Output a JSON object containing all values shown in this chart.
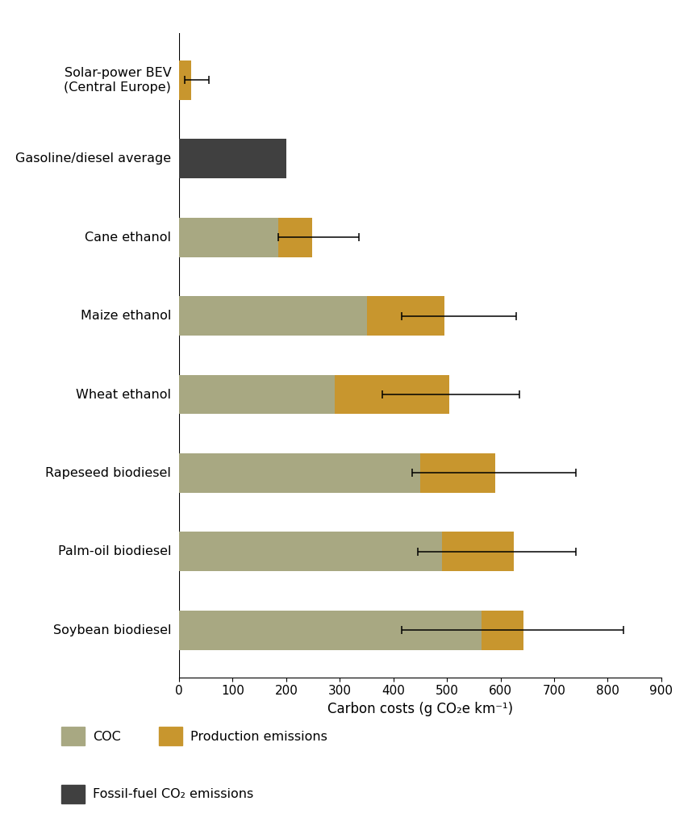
{
  "categories": [
    "Solar-power BEV\n(Central Europe)",
    "Gasoline/diesel average",
    "Cane ethanol",
    "Maize ethanol",
    "Wheat ethanol",
    "Rapeseed biodiesel",
    "Palm-oil biodiesel",
    "Soybean biodiesel"
  ],
  "coc_values": [
    0,
    0,
    185,
    350,
    290,
    450,
    490,
    565
  ],
  "production_values": [
    22,
    0,
    63,
    145,
    215,
    140,
    135,
    78
  ],
  "fossil_values": [
    0,
    200,
    0,
    0,
    0,
    0,
    0,
    0
  ],
  "error_centers": [
    22,
    null,
    245,
    450,
    450,
    460,
    490,
    460
  ],
  "error_low": [
    10,
    null,
    185,
    415,
    380,
    435,
    445,
    415
  ],
  "error_high": [
    55,
    null,
    335,
    630,
    635,
    740,
    740,
    830
  ],
  "coc_color": "#A8A882",
  "production_color": "#C8962E",
  "fossil_color": "#404040",
  "bar_height": 0.5,
  "xlim": [
    0,
    900
  ],
  "xticks": [
    0,
    100,
    200,
    300,
    400,
    500,
    600,
    700,
    800,
    900
  ],
  "xlabel": "Carbon costs (g CO₂e km⁻¹)",
  "background_color": "#FFFFFF",
  "legend_labels": [
    "COC",
    "Production emissions",
    "Fossil-fuel CO₂ emissions"
  ],
  "legend_colors": [
    "#A8A882",
    "#C8962E",
    "#404040"
  ]
}
